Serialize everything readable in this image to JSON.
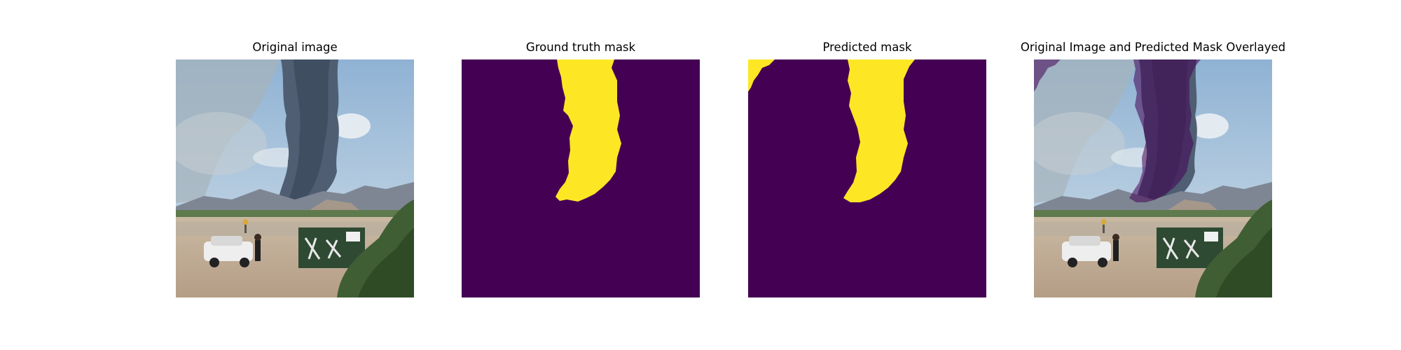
{
  "figure": {
    "panels": [
      {
        "id": "original",
        "title": "Original image",
        "kind": "photo"
      },
      {
        "id": "ground_truth",
        "title": "Ground truth mask",
        "kind": "mask"
      },
      {
        "id": "predicted",
        "title": "Predicted mask",
        "kind": "mask"
      },
      {
        "id": "overlay",
        "title": "Original Image and Predicted Mask Overlayed",
        "kind": "overlay"
      }
    ],
    "colors": {
      "mask_background": "#440154",
      "mask_foreground": "#fde725",
      "overlay_tint": "#440154"
    }
  }
}
